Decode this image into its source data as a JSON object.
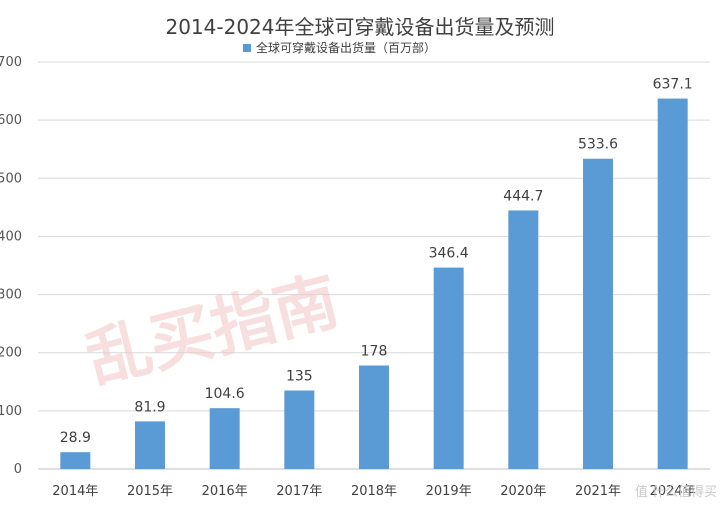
{
  "chart_data": {
    "type": "bar",
    "title": "2014-2024年全球可穿戴设备出货量及预测",
    "legend": "全球可穿戴设备出货量（百万部）",
    "legend_position": "top-center",
    "categories": [
      "2014年",
      "2015年",
      "2016年",
      "2017年",
      "2018年",
      "2019年",
      "2020年",
      "2021年",
      "2024年"
    ],
    "values": [
      28.9,
      81.9,
      104.6,
      135,
      178,
      346.4,
      444.7,
      533.6,
      637.1
    ],
    "value_labels": [
      "28.9",
      "81.9",
      "104.6",
      "135",
      "178",
      "346.4",
      "444.7",
      "533.6",
      "637.1"
    ],
    "y_ticks": [
      "0",
      "100",
      "200",
      "300",
      "400",
      "500",
      "600",
      "700"
    ],
    "ylim": [
      0,
      700
    ],
    "grid": true,
    "bar_color": "#5b9bd5",
    "grid_color": "#d9d9d9"
  },
  "watermark": {
    "text": "乱买指南",
    "color": "#f2c6c6"
  },
  "corner_mark": {
    "text": "值 什么值得买"
  }
}
